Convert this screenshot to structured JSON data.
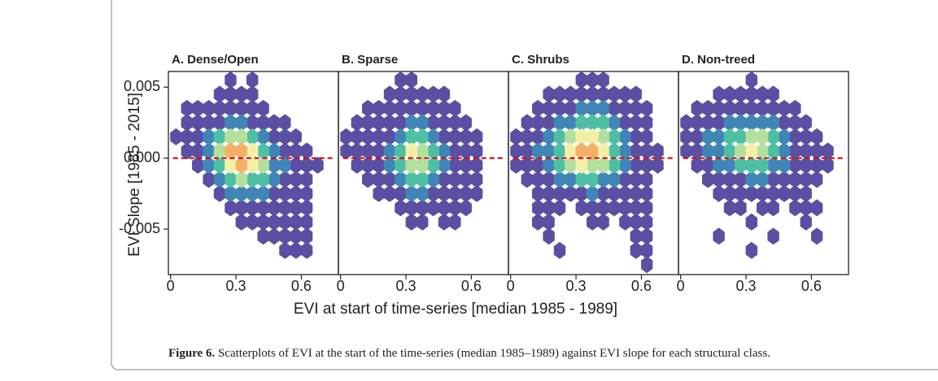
{
  "figure": {
    "ylabel": "EVI Slope [1985 - 2015]",
    "xlabel": "EVI at start of time-series  [median 1985 - 1989]",
    "caption_label": "Figure 6.",
    "caption": " Scatterplots of EVI at the start of the time-series (median 1985–1989) against EVI slope for each structural class.",
    "colormap": [
      "#5a4fa2",
      "#3f86b7",
      "#4fbfa3",
      "#b3e09c",
      "#f3f0a6",
      "#f5b067",
      "#d7301f"
    ]
  },
  "chart_data": [
    {
      "type": "hexbin",
      "title": "A. Dense/Open",
      "xlim": [
        -0.01,
        0.77
      ],
      "ylim": [
        -0.0082,
        0.0061
      ],
      "xticks": [
        0,
        0.3,
        0.6
      ],
      "yticks": [
        -0.005,
        {
          "value": 0,
          "label": "0.000"
        },
        0.005
      ],
      "hline": 0,
      "hline_color": "#cc1111",
      "xbins": [
        0,
        0.05,
        0.1,
        0.15,
        0.2,
        0.25,
        0.3,
        0.35,
        0.4,
        0.45,
        0.5,
        0.55,
        0.6,
        0.65,
        0.7,
        0.75
      ],
      "ybins": [
        -0.008,
        -0.007,
        -0.006,
        -0.005,
        -0.004,
        -0.003,
        -0.002,
        -0.001,
        0,
        0.001,
        0.002,
        0.003,
        0.004,
        0.005,
        0.006
      ],
      "counts": [
        [
          0,
          0,
          0,
          0,
          0,
          0,
          0,
          0,
          0,
          0,
          0,
          0,
          0,
          0,
          0
        ],
        [
          0,
          0,
          0,
          0,
          0,
          0,
          0,
          0,
          0,
          0,
          1,
          1,
          1,
          0,
          0
        ],
        [
          0,
          0,
          0,
          0,
          0,
          0,
          0,
          0,
          1,
          1,
          1,
          1,
          1,
          0,
          0
        ],
        [
          0,
          0,
          0,
          0,
          0,
          0,
          1,
          1,
          1,
          1,
          1,
          1,
          1,
          0,
          0
        ],
        [
          0,
          0,
          0,
          0,
          0,
          1,
          1,
          1,
          1,
          1,
          1,
          1,
          1,
          0,
          0
        ],
        [
          0,
          0,
          0,
          0,
          1,
          2,
          2,
          2,
          2,
          1,
          1,
          1,
          1,
          0,
          0
        ],
        [
          0,
          0,
          0,
          1,
          2,
          3,
          4,
          3,
          3,
          2,
          1,
          1,
          1,
          0,
          0
        ],
        [
          0,
          0,
          1,
          2,
          3,
          5,
          6,
          5,
          4,
          2,
          2,
          1,
          1,
          1,
          0
        ],
        [
          0,
          1,
          1,
          2,
          4,
          6,
          6,
          5,
          3,
          2,
          1,
          1,
          1,
          0,
          0
        ],
        [
          1,
          1,
          1,
          2,
          3,
          4,
          4,
          3,
          2,
          1,
          1,
          1,
          0,
          0,
          0
        ],
        [
          0,
          1,
          1,
          1,
          1,
          2,
          2,
          1,
          1,
          1,
          1,
          0,
          0,
          0,
          0
        ],
        [
          0,
          1,
          1,
          1,
          1,
          1,
          1,
          1,
          1,
          0,
          0,
          0,
          0,
          0,
          0
        ],
        [
          0,
          0,
          0,
          0,
          1,
          1,
          1,
          1,
          0,
          0,
          0,
          0,
          0,
          0,
          0
        ],
        [
          0,
          0,
          0,
          0,
          0,
          1,
          0,
          1,
          0,
          0,
          0,
          0,
          0,
          0,
          0
        ]
      ]
    },
    {
      "type": "hexbin",
      "title": "B. Sparse",
      "xlim": [
        -0.01,
        0.77
      ],
      "ylim": [
        -0.0082,
        0.0061
      ],
      "xticks": [
        0,
        0.3,
        0.6
      ],
      "hline": 0,
      "hline_color": "#cc1111",
      "xbins": [
        0,
        0.05,
        0.1,
        0.15,
        0.2,
        0.25,
        0.3,
        0.35,
        0.4,
        0.45,
        0.5,
        0.55,
        0.6,
        0.65,
        0.7,
        0.75
      ],
      "ybins": [
        -0.008,
        -0.007,
        -0.006,
        -0.005,
        -0.004,
        -0.003,
        -0.002,
        -0.001,
        0,
        0.001,
        0.002,
        0.003,
        0.004,
        0.005,
        0.006
      ],
      "counts": [
        [
          0,
          0,
          0,
          0,
          0,
          0,
          0,
          0,
          0,
          0,
          0,
          0,
          0,
          0,
          0
        ],
        [
          0,
          0,
          0,
          0,
          0,
          0,
          0,
          0,
          0,
          0,
          0,
          0,
          0,
          0,
          0
        ],
        [
          0,
          0,
          0,
          0,
          0,
          0,
          0,
          0,
          0,
          0,
          0,
          0,
          0,
          0,
          0
        ],
        [
          0,
          0,
          0,
          0,
          0,
          0,
          1,
          1,
          0,
          1,
          1,
          0,
          0,
          0,
          0
        ],
        [
          0,
          0,
          0,
          0,
          0,
          1,
          1,
          1,
          1,
          1,
          1,
          1,
          0,
          0,
          0
        ],
        [
          0,
          0,
          0,
          1,
          1,
          1,
          2,
          2,
          1,
          1,
          1,
          1,
          1,
          0,
          0
        ],
        [
          0,
          0,
          1,
          1,
          1,
          2,
          3,
          3,
          2,
          1,
          1,
          1,
          1,
          0,
          0
        ],
        [
          0,
          1,
          1,
          1,
          2,
          3,
          4,
          4,
          3,
          2,
          1,
          1,
          1,
          0,
          0
        ],
        [
          1,
          1,
          1,
          1,
          2,
          3,
          5,
          4,
          3,
          2,
          1,
          1,
          1,
          0,
          0
        ],
        [
          1,
          1,
          1,
          1,
          1,
          2,
          3,
          3,
          2,
          1,
          1,
          1,
          1,
          0,
          0
        ],
        [
          0,
          1,
          1,
          1,
          1,
          1,
          2,
          2,
          1,
          1,
          1,
          1,
          0,
          0,
          0
        ],
        [
          0,
          0,
          1,
          1,
          1,
          1,
          1,
          1,
          1,
          1,
          1,
          0,
          0,
          0,
          0
        ],
        [
          0,
          0,
          0,
          0,
          1,
          1,
          1,
          1,
          1,
          1,
          0,
          0,
          0,
          0,
          0
        ],
        [
          0,
          0,
          0,
          0,
          0,
          1,
          1,
          0,
          0,
          0,
          0,
          0,
          0,
          0,
          0
        ]
      ]
    },
    {
      "type": "hexbin",
      "title": "C. Shrubs",
      "xlim": [
        -0.01,
        0.77
      ],
      "ylim": [
        -0.0082,
        0.0061
      ],
      "xticks": [
        0,
        0.3,
        0.6
      ],
      "hline": 0,
      "hline_color": "#cc1111",
      "xbins": [
        0,
        0.05,
        0.1,
        0.15,
        0.2,
        0.25,
        0.3,
        0.35,
        0.4,
        0.45,
        0.5,
        0.55,
        0.6,
        0.65,
        0.7,
        0.75
      ],
      "ybins": [
        -0.008,
        -0.007,
        -0.006,
        -0.005,
        -0.004,
        -0.003,
        -0.002,
        -0.001,
        0,
        0.001,
        0.002,
        0.003,
        0.004,
        0.005,
        0.006
      ],
      "counts": [
        [
          0,
          0,
          0,
          0,
          0,
          0,
          0,
          0,
          0,
          0,
          0,
          0,
          1,
          0,
          0
        ],
        [
          0,
          0,
          0,
          0,
          1,
          0,
          0,
          0,
          0,
          0,
          0,
          1,
          1,
          0,
          0
        ],
        [
          0,
          0,
          0,
          1,
          0,
          0,
          0,
          0,
          0,
          0,
          0,
          1,
          1,
          0,
          0
        ],
        [
          0,
          0,
          1,
          1,
          0,
          0,
          0,
          1,
          1,
          0,
          1,
          1,
          1,
          0,
          0
        ],
        [
          0,
          0,
          1,
          1,
          1,
          0,
          1,
          1,
          1,
          1,
          1,
          1,
          1,
          0,
          0
        ],
        [
          0,
          0,
          1,
          1,
          1,
          1,
          1,
          2,
          1,
          1,
          1,
          1,
          1,
          0,
          0
        ],
        [
          0,
          1,
          1,
          1,
          2,
          2,
          3,
          3,
          2,
          2,
          1,
          1,
          1,
          0,
          0
        ],
        [
          1,
          1,
          1,
          2,
          3,
          4,
          5,
          4,
          4,
          3,
          2,
          1,
          1,
          1,
          0
        ],
        [
          1,
          1,
          2,
          2,
          3,
          5,
          6,
          6,
          5,
          3,
          2,
          1,
          1,
          1,
          0
        ],
        [
          1,
          1,
          1,
          2,
          3,
          4,
          5,
          5,
          4,
          3,
          2,
          1,
          1,
          0,
          0
        ],
        [
          0,
          1,
          1,
          1,
          2,
          2,
          3,
          3,
          3,
          2,
          1,
          1,
          1,
          0,
          0
        ],
        [
          0,
          0,
          1,
          1,
          1,
          1,
          2,
          2,
          2,
          1,
          1,
          1,
          1,
          0,
          0
        ],
        [
          0,
          0,
          0,
          1,
          1,
          1,
          1,
          1,
          1,
          1,
          1,
          1,
          0,
          0,
          0
        ],
        [
          0,
          0,
          0,
          0,
          0,
          0,
          1,
          1,
          1,
          0,
          0,
          0,
          0,
          0,
          0
        ]
      ]
    },
    {
      "type": "hexbin",
      "title": "D. Non-treed",
      "xlim": [
        -0.01,
        0.77
      ],
      "ylim": [
        -0.0082,
        0.0061
      ],
      "xticks": [
        0,
        0.3,
        0.6
      ],
      "hline": 0,
      "hline_color": "#cc1111",
      "xbins": [
        0,
        0.05,
        0.1,
        0.15,
        0.2,
        0.25,
        0.3,
        0.35,
        0.4,
        0.45,
        0.5,
        0.55,
        0.6,
        0.65,
        0.7,
        0.75
      ],
      "ybins": [
        -0.008,
        -0.007,
        -0.006,
        -0.005,
        -0.004,
        -0.003,
        -0.002,
        -0.001,
        0,
        0.001,
        0.002,
        0.003,
        0.004,
        0.005,
        0.006
      ],
      "counts": [
        [
          0,
          0,
          0,
          0,
          0,
          0,
          0,
          0,
          0,
          0,
          0,
          0,
          0,
          0,
          0
        ],
        [
          0,
          0,
          0,
          0,
          0,
          0,
          1,
          0,
          0,
          0,
          0,
          0,
          0,
          0,
          0
        ],
        [
          0,
          0,
          0,
          1,
          0,
          0,
          0,
          0,
          1,
          0,
          0,
          0,
          1,
          0,
          0
        ],
        [
          0,
          0,
          0,
          0,
          0,
          0,
          1,
          0,
          0,
          0,
          0,
          1,
          0,
          0,
          0
        ],
        [
          0,
          0,
          0,
          0,
          1,
          1,
          0,
          1,
          1,
          0,
          1,
          1,
          1,
          0,
          0
        ],
        [
          0,
          0,
          0,
          1,
          1,
          1,
          1,
          1,
          1,
          1,
          1,
          1,
          0,
          0,
          0
        ],
        [
          0,
          0,
          1,
          1,
          1,
          1,
          2,
          2,
          1,
          1,
          1,
          1,
          1,
          0,
          0
        ],
        [
          0,
          1,
          1,
          2,
          2,
          3,
          3,
          3,
          2,
          2,
          1,
          1,
          1,
          1,
          0
        ],
        [
          1,
          1,
          2,
          2,
          3,
          4,
          5,
          4,
          3,
          2,
          1,
          1,
          1,
          1,
          0
        ],
        [
          1,
          1,
          2,
          2,
          3,
          3,
          4,
          4,
          3,
          2,
          1,
          1,
          1,
          0,
          0
        ],
        [
          1,
          1,
          1,
          1,
          2,
          2,
          2,
          2,
          2,
          1,
          1,
          1,
          0,
          0,
          0
        ],
        [
          0,
          1,
          1,
          1,
          1,
          1,
          1,
          1,
          1,
          1,
          1,
          0,
          0,
          0,
          0
        ],
        [
          0,
          0,
          0,
          1,
          1,
          1,
          1,
          1,
          1,
          0,
          0,
          0,
          0,
          0,
          0
        ],
        [
          0,
          0,
          0,
          0,
          0,
          0,
          1,
          0,
          0,
          0,
          0,
          0,
          0,
          0,
          0
        ]
      ]
    }
  ]
}
